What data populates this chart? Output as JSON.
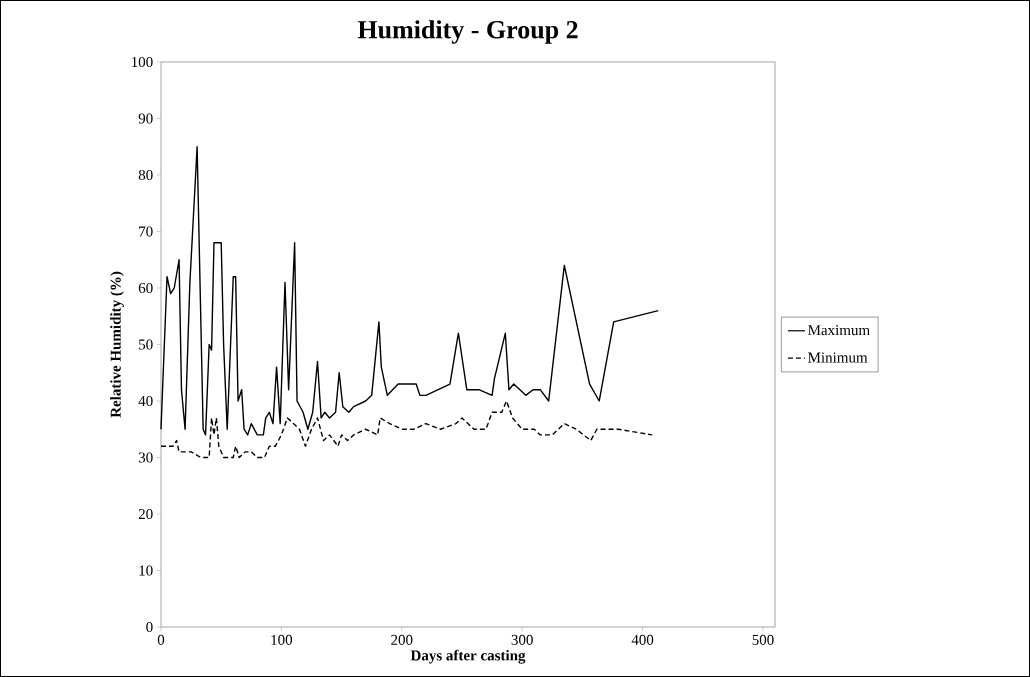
{
  "chart_data": {
    "type": "line",
    "title": "Humidity - Group 2",
    "xlabel": "Days after casting",
    "ylabel": "Relative Humidity (%)",
    "xlim": [
      0,
      510
    ],
    "ylim": [
      0,
      100
    ],
    "xticks": [
      0,
      100,
      200,
      300,
      400,
      500
    ],
    "yticks": [
      0,
      10,
      20,
      30,
      40,
      50,
      60,
      70,
      80,
      90,
      100
    ],
    "grid": false,
    "legend": "right",
    "marker": "none",
    "series": [
      {
        "name": "Maximum",
        "color": "#000000",
        "line_style": "solid",
        "x": [
          0,
          5,
          8,
          11,
          15,
          17,
          20,
          24,
          30,
          35,
          37,
          40,
          42,
          44,
          50,
          52,
          55,
          60,
          62,
          64,
          67,
          69,
          72,
          75,
          80,
          85,
          87,
          90,
          93,
          96,
          99,
          103,
          106,
          111,
          113,
          118,
          122,
          126,
          130,
          133,
          136,
          140,
          145,
          148,
          151,
          156,
          160,
          170,
          175,
          181,
          183,
          188,
          197,
          212,
          215,
          220,
          240,
          247,
          254,
          264,
          275,
          277,
          286,
          289,
          293,
          303,
          309,
          315,
          322,
          335,
          356,
          364,
          376,
          413
        ],
        "values": [
          35,
          62,
          59,
          60,
          65,
          42,
          35,
          61,
          85,
          35,
          34,
          50,
          49,
          68,
          68,
          50,
          35,
          62,
          62,
          40,
          42,
          35,
          34,
          36,
          34,
          34,
          37,
          38,
          36,
          46,
          36,
          61,
          42,
          68,
          40,
          38,
          35,
          38,
          47,
          37,
          38,
          37,
          38,
          45,
          39,
          38,
          39,
          40,
          41,
          54,
          46,
          41,
          43,
          43,
          41,
          41,
          43,
          52,
          42,
          42,
          41,
          44,
          52,
          42,
          43,
          41,
          42,
          42,
          40,
          64,
          43,
          40,
          54,
          56
        ]
      },
      {
        "name": "Minimum",
        "color": "#000000",
        "line_style": "dashed",
        "x": [
          0,
          10,
          13,
          15,
          25,
          33,
          40,
          42,
          44,
          46,
          48,
          52,
          60,
          62,
          65,
          70,
          75,
          80,
          86,
          90,
          95,
          100,
          105,
          110,
          115,
          120,
          125,
          130,
          135,
          140,
          147,
          150,
          155,
          160,
          170,
          180,
          182,
          190,
          200,
          210,
          220,
          232,
          245,
          250,
          260,
          270,
          275,
          283,
          287,
          292,
          300,
          310,
          315,
          325,
          335,
          345,
          357,
          362,
          380,
          408
        ],
        "values": [
          32,
          32,
          33,
          31,
          31,
          30,
          30,
          37,
          34,
          37,
          32,
          30,
          30,
          32,
          30,
          31,
          31,
          30,
          30,
          32,
          32,
          34,
          37,
          36,
          35,
          32,
          35,
          37,
          33,
          34,
          32,
          34,
          33,
          34,
          35,
          34,
          37,
          36,
          35,
          35,
          36,
          35,
          36,
          37,
          35,
          35,
          38,
          38,
          40,
          37,
          35,
          35,
          34,
          34,
          36,
          35,
          33,
          35,
          35,
          34
        ]
      }
    ]
  }
}
